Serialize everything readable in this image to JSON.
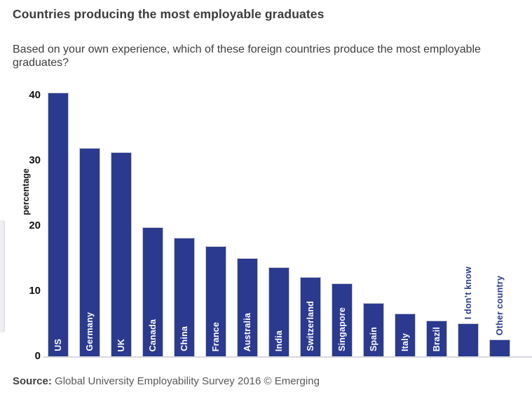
{
  "header": {
    "title": "Countries producing the most employable graduates",
    "subtitle": "Based on your own experience, which of these foreign countries produce the most employable graduates?"
  },
  "chart_data": {
    "type": "bar",
    "title": "Countries producing the most employable graduates",
    "categories": [
      "US",
      "Germany",
      "UK",
      "Canada",
      "China",
      "France",
      "Australia",
      "India",
      "Switzerland",
      "Singapore",
      "Spain",
      "Italy",
      "Brazil",
      "I don’t know",
      "Other country"
    ],
    "values": [
      40.4,
      31.9,
      31.3,
      19.8,
      18.2,
      16.9,
      15.0,
      13.7,
      12.1,
      11.2,
      8.2,
      6.6,
      5.5,
      5.0,
      2.6
    ],
    "xlabel": "",
    "ylabel": "percentage",
    "yticks": [
      0,
      10,
      20,
      30,
      40
    ],
    "ylim": [
      0,
      42
    ],
    "grid": false,
    "legend": false,
    "bar_color": "#2b3a8e",
    "bar_border_color": "#c9c9d6",
    "inside_label_color": "#ffffff",
    "outside_label_color": "#2b3a8e",
    "outside_label_categories": [
      "I don’t know",
      "Other country"
    ]
  },
  "footer": {
    "source_label": "Source:",
    "source_text": " Global University Employability Survey 2016 © Emerging"
  }
}
